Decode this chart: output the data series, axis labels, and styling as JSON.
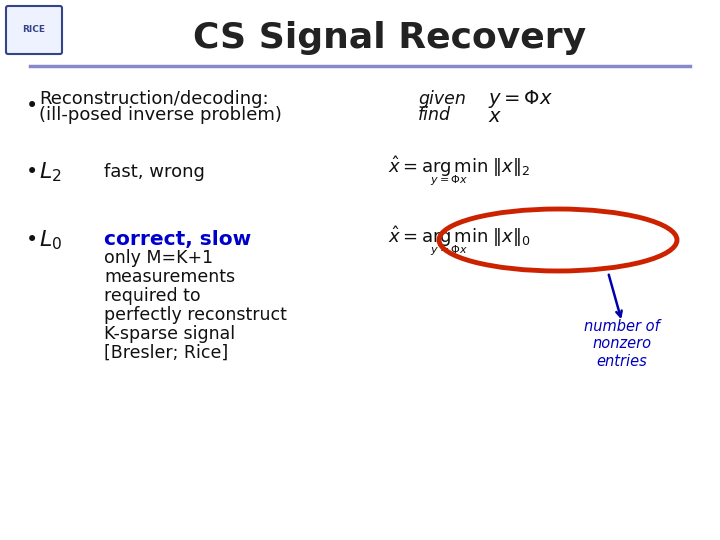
{
  "title": "CS Signal Recovery",
  "title_fontsize": 26,
  "title_color": "#222222",
  "background_color": "#ffffff",
  "header_line_color": "#8888cc",
  "bullet1_text1": "Reconstruction/decoding:",
  "bullet1_text2": "(ill-posed inverse problem)",
  "bullet2_text": "fast, wrong",
  "bullet3_text1": "correct, slow",
  "bullet3_text2": "only M=K+1",
  "bullet3_text3": "measurements",
  "bullet3_text4": "required to",
  "bullet3_text5": "perfectly reconstruct",
  "bullet3_text6": "K-sparse signal",
  "bullet3_text7": "[Bresler; Rice]",
  "given_text": "given",
  "find_text": "find",
  "annotation_text": "number of\nnonzero\nentries",
  "correct_slow_color": "#0000cc",
  "annotation_color": "#0000bb",
  "ellipse_color": "#cc2200",
  "arrow_color": "#0000aa",
  "text_color": "#111111"
}
